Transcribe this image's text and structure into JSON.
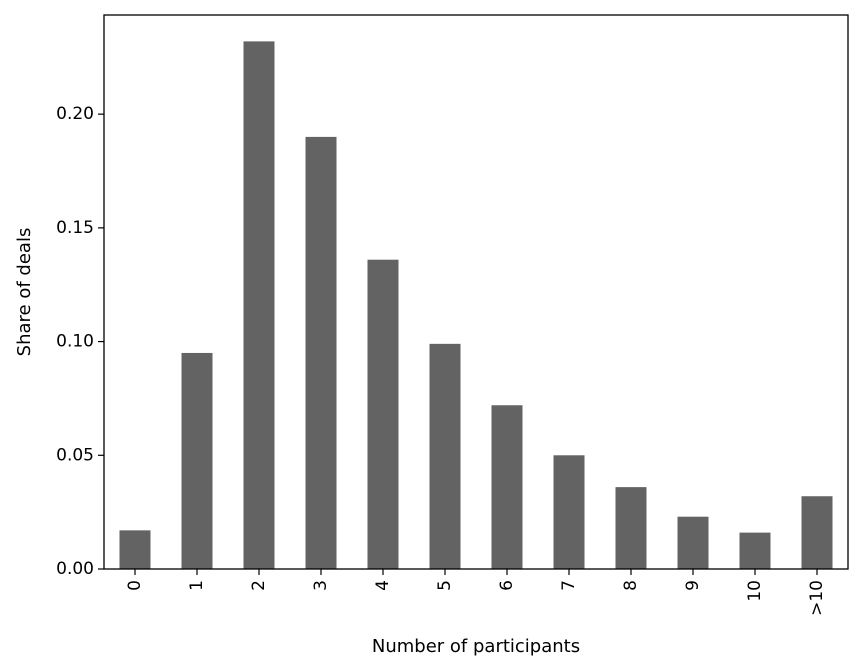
{
  "chart_data": {
    "type": "bar",
    "title": "",
    "xlabel": "Number of participants",
    "ylabel": "Share of deals",
    "categories": [
      "0",
      "1",
      "2",
      "3",
      "4",
      "5",
      "6",
      "7",
      "8",
      "9",
      "10",
      ">10"
    ],
    "values": [
      0.017,
      0.095,
      0.232,
      0.19,
      0.136,
      0.099,
      0.072,
      0.05,
      0.036,
      0.023,
      0.016,
      0.032
    ],
    "ylim": [
      0,
      0.2436
    ],
    "yticks": [
      0.0,
      0.05,
      0.1,
      0.15,
      0.2
    ],
    "ytick_labels": [
      "0.00",
      "0.05",
      "0.10",
      "0.15",
      "0.20"
    ],
    "x_tick_rotation": "vertical",
    "bar_color": "#636363",
    "grid": false,
    "legend": "none"
  }
}
